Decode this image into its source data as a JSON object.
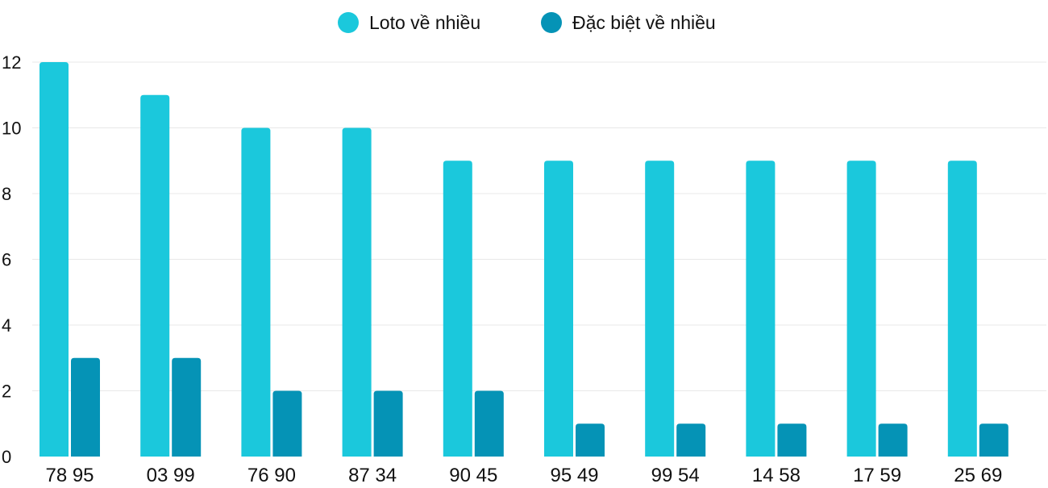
{
  "chart_data": {
    "type": "bar",
    "categories": [
      "78 95",
      "03 99",
      "76 90",
      "87 34",
      "90 45",
      "95 49",
      "99 54",
      "14 58",
      "17 59",
      "25 69"
    ],
    "series": [
      {
        "name": "Loto về nhiều",
        "values": [
          12,
          11,
          10,
          10,
          9,
          9,
          9,
          9,
          9,
          9
        ],
        "color": "#1bc8dc"
      },
      {
        "name": "Đặc biệt về nhiều",
        "values": [
          3,
          3,
          2,
          2,
          2,
          1,
          1,
          1,
          1,
          1
        ],
        "color": "#0593b6"
      }
    ],
    "ylim": [
      0,
      12
    ],
    "yticks": [
      0,
      2,
      4,
      6,
      8,
      10,
      12
    ],
    "grid": true,
    "legend_position": "top-center"
  }
}
